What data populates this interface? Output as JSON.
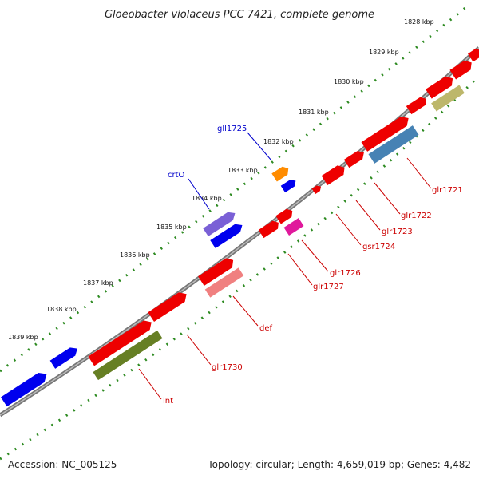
{
  "title": "Gloeobacter violaceus PCC 7421, complete genome",
  "footer": {
    "accession": "Accession: NC_005125",
    "summary": "Topology: circular; Length: 4,659,019 bp; Genes: 4,482"
  },
  "colors": {
    "backbone": "#888888",
    "tick": "#2e8b22",
    "label_line_forward": "#0000cc",
    "label_line_reverse": "#cc0000"
  },
  "ruler": [
    "1828 kbp",
    "1829 kbp",
    "1830 kbp",
    "1831 kbp",
    "1832 kbp",
    "1833 kbp",
    "1834 kbp",
    "1835 kbp",
    "1836 kbp",
    "1837 kbp",
    "1838 kbp",
    "1839 kbp"
  ],
  "gene_labels": [
    {
      "name": "gll1725",
      "strand": "forward"
    },
    {
      "name": "crtO",
      "strand": "forward"
    },
    {
      "name": "glr1721",
      "strand": "reverse"
    },
    {
      "name": "glr1722",
      "strand": "reverse"
    },
    {
      "name": "glr1723",
      "strand": "reverse"
    },
    {
      "name": "gsr1724",
      "strand": "reverse"
    },
    {
      "name": "glr1726",
      "strand": "reverse"
    },
    {
      "name": "glr1727",
      "strand": "reverse"
    },
    {
      "name": "def",
      "strand": "reverse"
    },
    {
      "name": "glr1730",
      "strand": "reverse"
    },
    {
      "name": "lnt",
      "strand": "reverse"
    }
  ]
}
